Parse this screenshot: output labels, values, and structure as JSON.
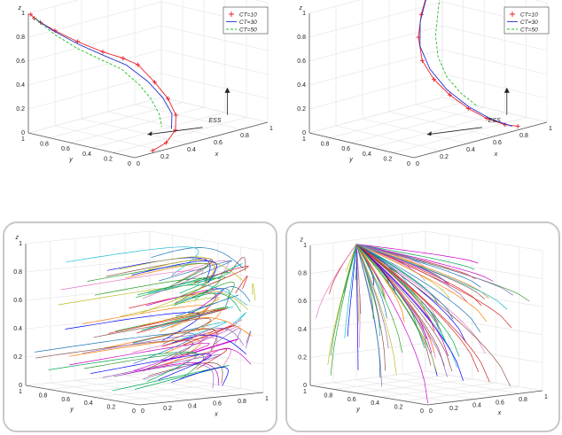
{
  "chart_data": [
    {
      "type": "line",
      "axes": {
        "x": "x",
        "y": "y",
        "z": "z"
      },
      "ticks": {
        "x": [
          "0",
          "0.2",
          "0.4",
          "0.6",
          "0.8",
          "1"
        ],
        "y": [
          "0",
          "0.2",
          "0.4",
          "0.6",
          "0.8",
          "1"
        ],
        "z": [
          "0",
          "0.2",
          "0.4",
          "0.6",
          "0.8",
          "1"
        ]
      },
      "xlim": [
        0,
        1
      ],
      "ylim": [
        0,
        1
      ],
      "zlim": [
        0,
        1
      ],
      "legend": {
        "placement": "top-right",
        "entries": [
          "CT=10",
          "CT=30",
          "CT=50"
        ]
      },
      "series": [
        {
          "name": "CT=10",
          "color": "#e8202a",
          "marker": "+",
          "points": [
            [
              0.01,
              0.99,
              0.99
            ],
            [
              0.02,
              0.97,
              0.96
            ],
            [
              0.05,
              0.95,
              0.92
            ],
            [
              0.12,
              0.9,
              0.84
            ],
            [
              0.25,
              0.85,
              0.72
            ],
            [
              0.4,
              0.8,
              0.6
            ],
            [
              0.52,
              0.76,
              0.52
            ],
            [
              0.6,
              0.72,
              0.45
            ],
            [
              0.63,
              0.6,
              0.32
            ],
            [
              0.61,
              0.45,
              0.22
            ],
            [
              0.55,
              0.3,
              0.13
            ],
            [
              0.45,
              0.18,
              0.06
            ],
            [
              0.3,
              0.08,
              0.02
            ],
            [
              0.15,
              0.02,
              0.01
            ]
          ]
        },
        {
          "name": "CT=30",
          "color": "#2233cc",
          "points": [
            [
              0.02,
              0.97,
              0.96
            ],
            [
              0.1,
              0.9,
              0.85
            ],
            [
              0.25,
              0.84,
              0.7
            ],
            [
              0.4,
              0.78,
              0.57
            ],
            [
              0.52,
              0.73,
              0.47
            ],
            [
              0.58,
              0.6,
              0.34
            ],
            [
              0.57,
              0.45,
              0.24
            ],
            [
              0.52,
              0.3,
              0.15
            ],
            [
              0.42,
              0.18,
              0.08
            ]
          ]
        },
        {
          "name": "CT=50",
          "color": "#22bb22",
          "points": [
            [
              0.02,
              0.97,
              0.96
            ],
            [
              0.1,
              0.88,
              0.82
            ],
            [
              0.22,
              0.82,
              0.68
            ],
            [
              0.36,
              0.75,
              0.55
            ],
            [
              0.46,
              0.7,
              0.46
            ],
            [
              0.5,
              0.58,
              0.34
            ],
            [
              0.48,
              0.45,
              0.26
            ],
            [
              0.44,
              0.32,
              0.17
            ],
            [
              0.38,
              0.22,
              0.1
            ]
          ]
        }
      ],
      "annotations": [
        "ESS"
      ]
    },
    {
      "type": "line",
      "axes": {
        "x": "x",
        "y": "y",
        "z": "z"
      },
      "ticks": {
        "x": [
          "0",
          "0.2",
          "0.4",
          "0.6",
          "0.8",
          "1"
        ],
        "y": [
          "0",
          "0.2",
          "0.4",
          "0.6",
          "0.8",
          "1"
        ],
        "z": [
          "0",
          "0.2",
          "0.4",
          "0.6",
          "0.8",
          "1"
        ]
      },
      "xlim": [
        0,
        1
      ],
      "ylim": [
        0,
        1
      ],
      "zlim": [
        0,
        1
      ],
      "legend": {
        "placement": "top-right",
        "entries": [
          "CT=10",
          "CT=30",
          "CT=50"
        ]
      },
      "series": [
        {
          "name": "CT=10",
          "color": "#e8202a",
          "marker": "+",
          "points": [
            [
              0.98,
              0.98,
              0.99
            ],
            [
              0.9,
              0.96,
              0.97
            ],
            [
              0.8,
              0.9,
              0.92
            ],
            [
              0.7,
              0.82,
              0.82
            ],
            [
              0.6,
              0.72,
              0.68
            ],
            [
              0.55,
              0.62,
              0.52
            ],
            [
              0.56,
              0.52,
              0.38
            ],
            [
              0.6,
              0.42,
              0.26
            ],
            [
              0.66,
              0.32,
              0.15
            ],
            [
              0.72,
              0.22,
              0.07
            ],
            [
              0.78,
              0.12,
              0.02
            ],
            [
              0.82,
              0.05,
              0.01
            ]
          ]
        },
        {
          "name": "CT=30",
          "color": "#2233cc",
          "points": [
            [
              0.9,
              0.96,
              0.97
            ],
            [
              0.78,
              0.88,
              0.9
            ],
            [
              0.66,
              0.78,
              0.78
            ],
            [
              0.58,
              0.68,
              0.62
            ],
            [
              0.56,
              0.56,
              0.46
            ],
            [
              0.6,
              0.45,
              0.3
            ],
            [
              0.67,
              0.33,
              0.16
            ],
            [
              0.74,
              0.2,
              0.06
            ],
            [
              0.8,
              0.08,
              0.01
            ]
          ]
        },
        {
          "name": "CT=50",
          "color": "#22bb22",
          "points": [
            [
              0.98,
              0.98,
              0.99
            ],
            [
              0.92,
              0.92,
              0.9
            ],
            [
              0.84,
              0.84,
              0.78
            ],
            [
              0.76,
              0.76,
              0.64
            ],
            [
              0.7,
              0.66,
              0.5
            ],
            [
              0.68,
              0.55,
              0.36
            ],
            [
              0.7,
              0.44,
              0.24
            ],
            [
              0.74,
              0.33,
              0.14
            ]
          ]
        }
      ],
      "annotations": [
        "ESS"
      ]
    },
    {
      "type": "line",
      "axes": {
        "x": "x",
        "y": "y",
        "z": "z"
      },
      "ticks": {
        "x": [
          "0",
          "0.2",
          "0.4",
          "0.6",
          "0.8",
          "1"
        ],
        "y": [
          "0",
          "0.2",
          "0.4",
          "0.6",
          "0.8",
          "1"
        ],
        "z": [
          "0",
          "0.2",
          "0.4",
          "0.6",
          "0.8",
          "1"
        ]
      },
      "xlim": [
        0,
        1
      ],
      "ylim": [
        0,
        1
      ],
      "zlim": [
        0,
        1
      ],
      "trajectories": "many initial conditions, each curve rising in z while looping in x and y"
    },
    {
      "type": "line",
      "axes": {
        "x": "x",
        "y": "y",
        "z": "z"
      },
      "ticks": {
        "x": [
          "0",
          "0.2",
          "0.4",
          "0.6",
          "0.8",
          "1"
        ],
        "y": [
          "0",
          "0.2",
          "0.4",
          "0.6",
          "0.8",
          "1"
        ],
        "z": [
          "0",
          "0.2",
          "0.4",
          "0.6",
          "0.8",
          "1"
        ]
      },
      "xlim": [
        0,
        1
      ],
      "ylim": [
        0,
        1
      ],
      "zlim": [
        0,
        1
      ],
      "trajectories": "many initial conditions, each curve converging toward the top corner near z=1"
    }
  ]
}
